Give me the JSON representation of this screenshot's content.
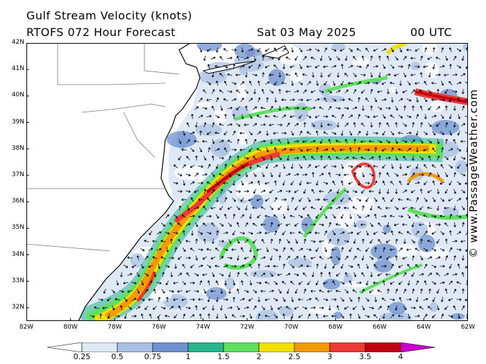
{
  "header": {
    "title": "Gulf Stream Velocity (knots)",
    "model": "RTOFS 072 Hour Forecast",
    "date": "Sat 03 May 2025",
    "time": "00 UTC"
  },
  "watermark": "© www.PassageWeather.com",
  "map": {
    "lat_labels": [
      "42N",
      "41N",
      "40N",
      "39N",
      "38N",
      "37N",
      "36N",
      "35N",
      "34N",
      "33N",
      "32N"
    ],
    "lon_labels": [
      "82W",
      "80W",
      "78W",
      "76W",
      "74W",
      "72W",
      "70W",
      "68W",
      "66W",
      "64W",
      "62W"
    ],
    "lat_range": [
      31.5,
      42
    ],
    "lon_range": [
      -82,
      -62
    ]
  },
  "colorbar": {
    "labels": [
      "0.25",
      "0.5",
      "0.75",
      "1",
      "1.5",
      "2",
      "2.5",
      "3",
      "3.5",
      "4"
    ],
    "colors": [
      "#ffffff",
      "#dfe8f5",
      "#a9c1e3",
      "#6e92cf",
      "#27b78e",
      "#5fe05f",
      "#f2e100",
      "#f29a00",
      "#ef3a36",
      "#c30010",
      "#cc00cc"
    ]
  },
  "colors": {
    "land": "#ffffff",
    "ocean_low": "#ffffff",
    "ocean_mid": "#a9c1e3",
    "border": "#000000"
  }
}
